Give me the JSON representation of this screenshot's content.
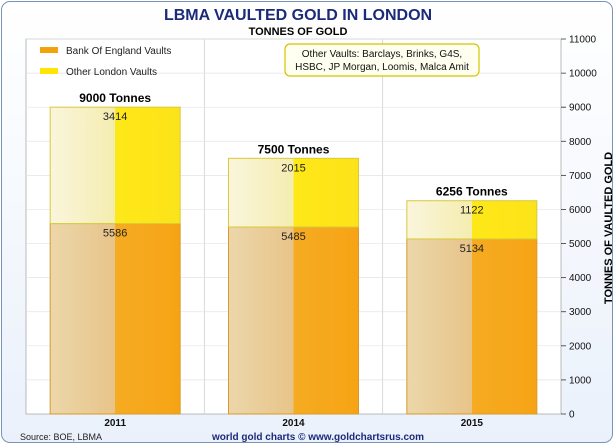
{
  "chart_data": {
    "type": "bar",
    "stacked": true,
    "title": "LBMA VAULTED GOLD IN LONDON",
    "subtitle": "TONNES OF GOLD",
    "ylabel": "TONNES OF VAULTED GOLD",
    "xlabel": "",
    "ylim": [
      0,
      11000
    ],
    "yticks": [
      0,
      1000,
      2000,
      3000,
      4000,
      5000,
      6000,
      7000,
      8000,
      9000,
      10000,
      11000
    ],
    "categories": [
      "2011",
      "2014",
      "2015"
    ],
    "series": [
      {
        "name": "Bank Of England Vaults",
        "values": [
          5586,
          5485,
          5134
        ],
        "color": "#f2a20c"
      },
      {
        "name": "Other London Vaults",
        "values": [
          3414,
          2015,
          1122
        ],
        "color": "#ffe600"
      }
    ],
    "totals": [
      "9000 Tonnes",
      "7500 Tonnes",
      "6256 Tonnes"
    ],
    "annotation": "Other Vaults: Barclays, Brinks, G4S, HSBC, JP Morgan, Loomis, Malca Amit",
    "legend_position": "top-left",
    "grid": true
  },
  "footer": {
    "source": "Source: BOE, LBMA",
    "credit": "world gold charts © www.goldchartsrus.com"
  }
}
